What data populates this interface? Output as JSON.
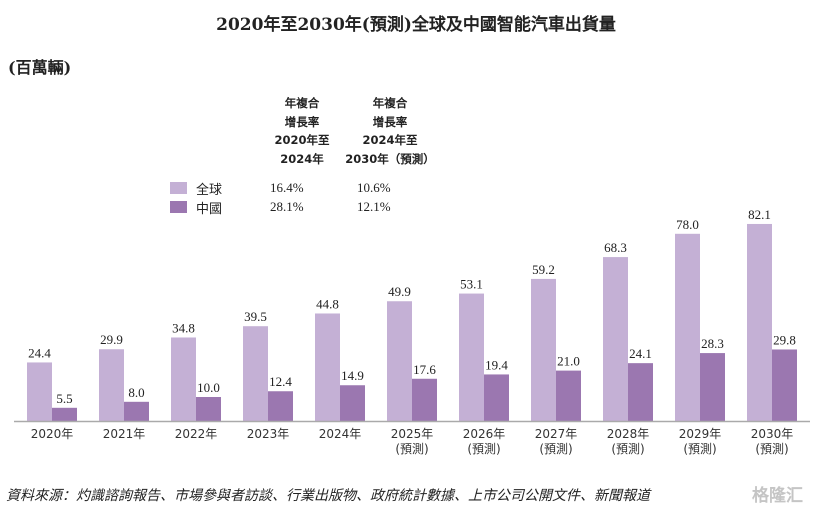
{
  "chart_data": {
    "type": "bar",
    "title": "2020年至2030年(預測)全球及中國智能汽車出貨量",
    "unit": "(百萬輛)",
    "categories": [
      "2020年",
      "2021年",
      "2022年",
      "2023年",
      "2024年",
      "2025年\n(預測)",
      "2026年\n(預測)",
      "2027年\n(預測)",
      "2028年\n(預測)",
      "2029年\n(預測)",
      "2030年\n(預測)"
    ],
    "series": [
      {
        "name": "全球",
        "color": "#c4b0d5",
        "values": [
          24.4,
          29.9,
          34.8,
          39.5,
          44.8,
          49.9,
          53.1,
          59.2,
          68.3,
          78.0,
          82.1
        ]
      },
      {
        "name": "中國",
        "color": "#9b77b0",
        "values": [
          5.5,
          8.0,
          10.0,
          12.4,
          14.9,
          17.6,
          19.4,
          21.0,
          24.1,
          28.3,
          29.8
        ]
      }
    ],
    "ylim": [
      0,
      85
    ],
    "grid": false,
    "legend": "top-left",
    "cagr_table": {
      "headers": [
        "年複合\n增長率\n2020年至\n2024年",
        "年複合\n增長率\n2024年至\n2030年（預測）"
      ],
      "rows": [
        {
          "name": "全球",
          "values": [
            "16.4%",
            "10.6%"
          ]
        },
        {
          "name": "中國",
          "values": [
            "28.1%",
            "12.1%"
          ]
        }
      ]
    }
  },
  "source": "資料來源：灼識諮詢報告、市場參與者訪談、行業出版物、政府統計數據、上市公司公開文件、新聞報道",
  "watermark": "格隆汇"
}
